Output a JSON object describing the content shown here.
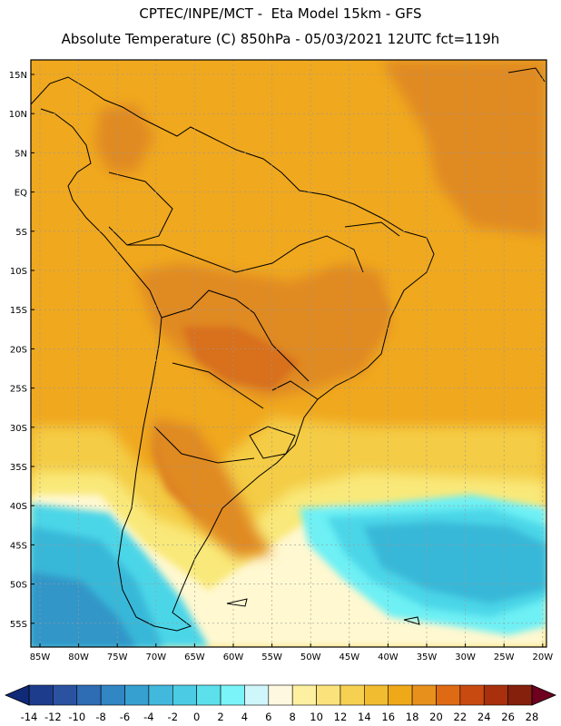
{
  "header": {
    "line1": "CPTEC/INPE/MCT -  Eta Model 15km - GFS",
    "line2": "Absolute Temperature (C) 850hPa - 05/03/2021 12UTC fct=119h"
  },
  "map": {
    "lat_labels": [
      "15N",
      "10N",
      "5N",
      "EQ",
      "5S",
      "10S",
      "15S",
      "20S",
      "25S",
      "30S",
      "35S",
      "40S",
      "45S",
      "50S",
      "55S"
    ],
    "lon_labels": [
      "85W",
      "80W",
      "75W",
      "70W",
      "65W",
      "60W",
      "55W",
      "50W",
      "45W",
      "40W",
      "35W",
      "30W",
      "25W",
      "20W"
    ],
    "colors": {
      "ocean_north": "#F0B418",
      "land_warm": "#F0A81E",
      "hot": "#E08A24",
      "hotter": "#D8701E",
      "mild": "#F4CC44",
      "light": "#F9E97A",
      "pale": "#FFF8D0",
      "cold1": "#6EF0F4",
      "cold2": "#4CD6E8",
      "cold3": "#38B8D8",
      "cold4": "#3096C8"
    }
  },
  "colorbar": {
    "labels": [
      "-14",
      "-12",
      "-10",
      "-8",
      "-6",
      "-4",
      "-2",
      "0",
      "2",
      "4",
      "6",
      "8",
      "10",
      "12",
      "14",
      "16",
      "18",
      "20",
      "22",
      "24",
      "26",
      "28"
    ],
    "colors": [
      "#1E3C8C",
      "#2A52A0",
      "#2E6CB4",
      "#3186C4",
      "#36A0D0",
      "#42B8DC",
      "#4CCCE4",
      "#5CE0EC",
      "#7AF4F8",
      "#CFF6FA",
      "#FFF8E0",
      "#FDF0A0",
      "#FBE27A",
      "#F6D050",
      "#F2BC30",
      "#EFA818",
      "#E8901C",
      "#DE6A14",
      "#C84A10",
      "#A8300C",
      "#84200C"
    ],
    "under_color": "#102A78",
    "over_color": "#6E0020"
  }
}
